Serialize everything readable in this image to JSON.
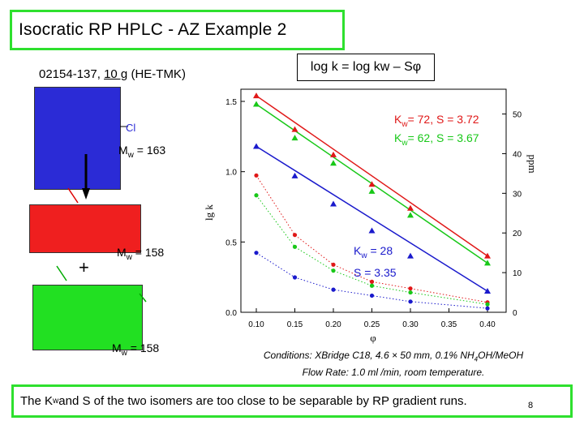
{
  "slide": {
    "title": "Isocratic RP HPLC - AZ Example 2",
    "page_number": "8"
  },
  "sample": {
    "code": "02154-137, ",
    "amount": "10 g",
    "reagent": " (HE-TMK)"
  },
  "equation": "log k = log kw – Sφ",
  "molecules": {
    "chloro_label": "Cl",
    "blue_mw_prefix": "M",
    "blue_mw_sub": "w",
    "blue_mw_value": " = 163",
    "red_mw_prefix": "M",
    "red_mw_sub": "w",
    "red_mw_value": " = 158",
    "green_mw_prefix": "M",
    "green_mw_sub": "w",
    "green_mw_value": " = 158",
    "plus": "+",
    "colors": {
      "blue": "#2b2bd6",
      "red": "#ef1f1f",
      "green": "#22e022"
    }
  },
  "annotations": {
    "red_k": "K",
    "red_sub": "w",
    "red_text": "= 72, S = 3.72",
    "green_k": "K",
    "green_sub": "w",
    "green_text": "= 62, S = 3.67",
    "blue_k": "K",
    "blue_sub": "w",
    "blue_text": "= 28",
    "blue_s": "S = 3.35"
  },
  "chart_data": {
    "type": "scatter",
    "xlabel": "φ",
    "ylabel_left": "lg k",
    "ylabel_right": "ppm",
    "xlim": [
      0.1,
      0.4
    ],
    "ylim_left": [
      0,
      1.5
    ],
    "ylim_right": [
      0,
      54
    ],
    "x_ticks": [
      "0.10",
      "0.15",
      "0.20",
      "0.25",
      "0.30",
      "0.35",
      "0.40"
    ],
    "y_ticks_left": [
      "0.0",
      "0.5",
      "1.0",
      "1.5"
    ],
    "y_ticks_right": [
      "0",
      "10",
      "20",
      "30",
      "40",
      "50"
    ],
    "series": [
      {
        "color": "#e01818",
        "marker": "triangle",
        "x": [
          0.1,
          0.15,
          0.2,
          0.25,
          0.3,
          0.4
        ],
        "y": [
          1.54,
          1.3,
          1.12,
          0.91,
          0.74,
          0.4
        ],
        "fit": [
          [
            0.1,
            1.54
          ],
          [
            0.4,
            0.4
          ]
        ]
      },
      {
        "color": "#18c818",
        "marker": "triangle",
        "x": [
          0.1,
          0.15,
          0.2,
          0.25,
          0.3,
          0.4
        ],
        "y": [
          1.48,
          1.24,
          1.06,
          0.86,
          0.69,
          0.35
        ],
        "fit": [
          [
            0.1,
            1.48
          ],
          [
            0.4,
            0.35
          ]
        ]
      },
      {
        "color": "#1a1acc",
        "marker": "triangle",
        "x": [
          0.1,
          0.15,
          0.2,
          0.25,
          0.3,
          0.4
        ],
        "y": [
          1.18,
          0.97,
          0.77,
          0.58,
          0.4,
          0.15
        ],
        "fit": [
          [
            0.1,
            1.18
          ],
          [
            0.4,
            0.15
          ]
        ]
      },
      {
        "color": "#e01818",
        "marker": "circle",
        "axis": "right",
        "x": [
          0.1,
          0.15,
          0.2,
          0.25,
          0.3,
          0.4
        ],
        "y": [
          34.5,
          19.5,
          12.0,
          7.7,
          6.0,
          2.5
        ],
        "dotted": true
      },
      {
        "color": "#18c818",
        "marker": "circle",
        "axis": "right",
        "x": [
          0.1,
          0.15,
          0.2,
          0.25,
          0.3,
          0.4
        ],
        "y": [
          29.5,
          16.5,
          10.5,
          6.7,
          5.0,
          2.0
        ],
        "dotted": true
      },
      {
        "color": "#1a1acc",
        "marker": "circle",
        "axis": "right",
        "x": [
          0.1,
          0.15,
          0.2,
          0.25,
          0.3,
          0.4
        ],
        "y": [
          15.0,
          8.8,
          5.7,
          4.2,
          2.7,
          1.0
        ],
        "dotted": true
      }
    ]
  },
  "conditions": {
    "line1_a": "Conditions: XBridge C18, 4.6 × 50 mm, 0.1% NH",
    "line1_sub": "4",
    "line1_b": "OH/MeOH",
    "line2": "Flow Rate: 1.0 ml /min, room temperature."
  },
  "footer": {
    "part1": "The K",
    "sub": "w",
    "part2": " and S of the two isomers are too close to be separable by RP gradient runs."
  }
}
